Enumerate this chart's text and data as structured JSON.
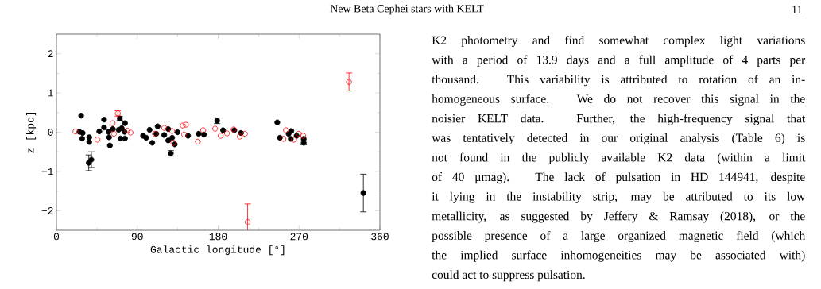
{
  "chart_data": {
    "type": "scatter",
    "xlabel": "Galactic longitude [°]",
    "ylabel": "z [kpc]",
    "xlim": [
      0,
      360
    ],
    "ylim": [
      -2.5,
      2.5
    ],
    "xticks": [
      0,
      90,
      180,
      270,
      360
    ],
    "yticks": [
      {
        "value": -2,
        "label": "−2"
      },
      {
        "value": -1,
        "label": "−1"
      },
      0,
      1,
      2
    ],
    "marker": "circle",
    "series": [
      {
        "color": "#000000",
        "x": [
          27.5,
          25.6,
          29.2,
          28.6,
          36.5,
          36.5,
          36.0,
          38.9,
          53.0,
          47.7,
          53.0,
          58.0,
          58.6,
          59.5,
          62.8,
          70.5,
          69.2,
          72.7,
          76.3,
          71.3,
          76.3,
          75.8,
          96.4,
          99.9,
          103.7,
          106.7,
          112.6,
          111.1,
          120.0,
          124.4,
          124.4,
          128.8,
          131.7,
          127.3,
          134.7,
          146.5,
          158.3,
          178.9,
          185.4,
          164.2,
          198.0,
          205.4,
          245.8,
          248.7,
          258.4,
          261.4,
          260.8,
          267.3,
          275.2,
          275.2,
          341.6
        ],
        "values": [
          0.42,
          0.01,
          -0.02,
          -0.16,
          -0.13,
          -0.25,
          -0.78,
          -0.7,
          0.32,
          0.02,
          0.12,
          0.01,
          -0.13,
          -0.34,
          0.08,
          0.35,
          0.06,
          0.1,
          0.23,
          -0.16,
          -0.16,
          0.01,
          -0.09,
          -0.14,
          0.06,
          -0.27,
          0.15,
          -0.04,
          -0.07,
          0.08,
          -0.21,
          -0.14,
          -0.31,
          -0.54,
          0.0,
          -0.09,
          -0.04,
          0.29,
          0.05,
          -0.06,
          0.05,
          -0.02,
          0.25,
          -0.14,
          -0.04,
          0.03,
          -0.17,
          -0.09,
          -0.17,
          -0.27,
          -1.55
        ],
        "errors": [
          null,
          null,
          null,
          null,
          null,
          null,
          0.2,
          0.2,
          null,
          null,
          null,
          null,
          null,
          null,
          null,
          0.05,
          null,
          null,
          null,
          null,
          null,
          null,
          null,
          null,
          null,
          null,
          null,
          null,
          null,
          null,
          null,
          null,
          null,
          0.07,
          null,
          null,
          null,
          0.07,
          null,
          null,
          null,
          null,
          null,
          null,
          null,
          null,
          null,
          null,
          null,
          0.05,
          0.48
        ]
      },
      {
        "color": "#ff0000",
        "x": [
          21.2,
          45.7,
          62.5,
          68.4,
          64.0,
          78.7,
          82.5,
          109.6,
          120.0,
          128.8,
          130.2,
          140.6,
          144.1,
          142.1,
          157.4,
          163.3,
          176.6,
          182.8,
          189.8,
          197.2,
          204.0,
          209.8,
          255.5,
          252.6,
          269.7,
          274.7,
          264.4,
          325.6,
          212.8
        ],
        "values": [
          0.02,
          -0.19,
          0.23,
          0.48,
          -0.04,
          0.04,
          -0.01,
          -0.04,
          0.11,
          0.03,
          -0.27,
          0.17,
          0.19,
          -0.06,
          -0.24,
          0.05,
          0.09,
          -0.09,
          -0.03,
          0.07,
          -0.11,
          -0.04,
          0.05,
          -0.17,
          -0.04,
          -0.09,
          -0.19,
          1.28,
          -2.29
        ],
        "errors": [
          null,
          null,
          null,
          0.07,
          null,
          null,
          null,
          null,
          null,
          null,
          null,
          null,
          null,
          null,
          null,
          null,
          null,
          null,
          null,
          null,
          null,
          null,
          null,
          null,
          null,
          null,
          null,
          0.23,
          0.46
        ]
      }
    ],
    "annotations": [
      "New Beta Cephei stars with KELT",
      "11",
      "K2 photometry and find somewhat complex light variations",
      "with a period of 13.9 days and a full amplitude of 4 parts per",
      "thousand. This variability is attributed to rotation of an in-",
      "homogeneous surface. We do not recover this signal in the",
      "noisier KELT data. Further, the high-frequency signal that",
      "was tentatively detected in our original analysis (Table 6) is",
      "not found in the publicly available K2 data (within a limit",
      "of 40 μmag). The lack of pulsation in HD 144941, despite",
      "it lying in the instability strip, may be attributed to its low",
      "metallicity, as suggested by Jeffery & Ramsay (2018), or the",
      "possible presence of a large organized magnetic field (which",
      "the implied surface inhomogeneities may be associated with)",
      "could act to suppress pulsation."
    ]
  }
}
